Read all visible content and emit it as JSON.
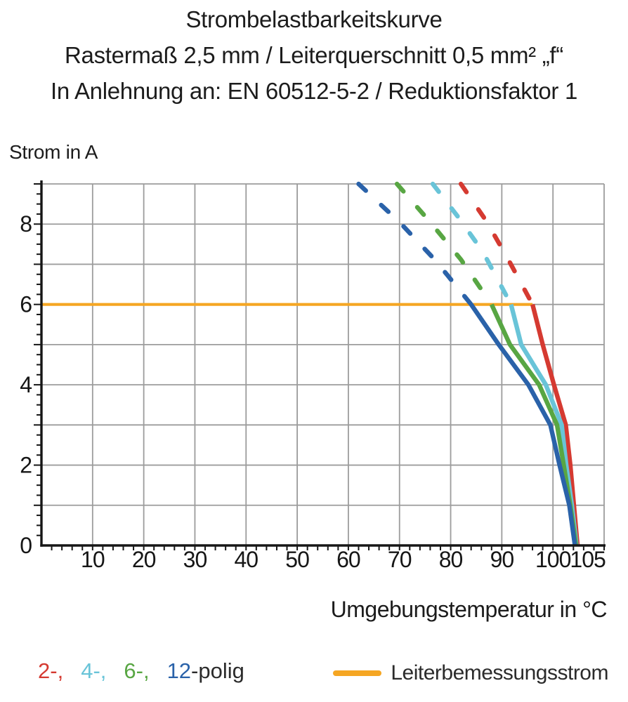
{
  "title": {
    "line1": "Strombelastbarkeitskurve",
    "line2": "Rastermaß 2,5 mm / Leiterquerschnitt 0,5 mm² „f“",
    "line3": "In Anlehnung an: EN 60512-5-2 / Reduktionsfaktor 1"
  },
  "chart_data": {
    "type": "line",
    "ylabel": "Strom in A",
    "xlabel": "Umgebungstemperatur in °C",
    "xlim": [
      0,
      110
    ],
    "ylim": [
      0,
      9
    ],
    "x_grid_step": 10,
    "y_grid_step": 1,
    "x_minor_tick_step": 2,
    "y_minor_tick_step": 0.25,
    "grid": true,
    "grid_color": "#9c9c9c",
    "axis_color": "#161616",
    "x_tick_labels": [
      {
        "value": 10,
        "label": "10"
      },
      {
        "value": 20,
        "label": "20"
      },
      {
        "value": 30,
        "label": "30"
      },
      {
        "value": 40,
        "label": "40"
      },
      {
        "value": 50,
        "label": "50"
      },
      {
        "value": 60,
        "label": "60"
      },
      {
        "value": 70,
        "label": "70"
      },
      {
        "value": 80,
        "label": "80"
      },
      {
        "value": 90,
        "label": "90"
      },
      {
        "value": 100,
        "label": "100"
      },
      {
        "value": 105,
        "label": "105",
        "dx": 13
      }
    ],
    "y_tick_labels": [
      {
        "value": 0,
        "label": "0"
      },
      {
        "value": 2,
        "label": "2"
      },
      {
        "value": 4,
        "label": "4"
      },
      {
        "value": 6,
        "label": "6"
      },
      {
        "value": 8,
        "label": "8"
      }
    ],
    "rated_current": {
      "label": "Leiterbemessungsstrom",
      "color": "#f5a623",
      "y": 6,
      "x_start": 0,
      "x_end": 96
    },
    "series": [
      {
        "name": "2-polig",
        "color": "#d53a31",
        "dashed": [
          [
            82,
            9
          ],
          [
            87,
            8.07
          ],
          [
            91.3,
            7.11
          ],
          [
            96,
            6
          ]
        ],
        "solid": [
          [
            96,
            6
          ],
          [
            98,
            5
          ],
          [
            100.2,
            4
          ],
          [
            102.5,
            3
          ],
          [
            103.4,
            2
          ],
          [
            104.1,
            1
          ],
          [
            104.8,
            0
          ]
        ]
      },
      {
        "name": "4-polig",
        "color": "#69c4d8",
        "dashed": [
          [
            76.5,
            9
          ],
          [
            81.5,
            8.17
          ],
          [
            86.3,
            7.31
          ],
          [
            91.8,
            6
          ]
        ],
        "solid": [
          [
            91.8,
            6
          ],
          [
            93.8,
            5
          ],
          [
            98.6,
            4
          ],
          [
            101.7,
            3
          ],
          [
            102.6,
            2
          ],
          [
            103.7,
            1
          ],
          [
            104.6,
            0
          ]
        ]
      },
      {
        "name": "6-polig",
        "color": "#58a643",
        "dashed": [
          [
            69.5,
            9
          ],
          [
            76,
            8.05
          ],
          [
            82,
            7.12
          ],
          [
            88,
            6
          ]
        ],
        "solid": [
          [
            88,
            6
          ],
          [
            91.6,
            5
          ],
          [
            97.3,
            4
          ],
          [
            100.8,
            3
          ],
          [
            102.1,
            2
          ],
          [
            103.4,
            1
          ],
          [
            104.5,
            0
          ]
        ]
      },
      {
        "name": "12-polig",
        "color": "#2a62a9",
        "dashed": [
          [
            62,
            9
          ],
          [
            70,
            8.05
          ],
          [
            77,
            7.1
          ],
          [
            84,
            6
          ]
        ],
        "solid": [
          [
            84,
            6
          ],
          [
            89.4,
            5
          ],
          [
            95.2,
            4
          ],
          [
            99.5,
            3
          ],
          [
            101.3,
            2
          ],
          [
            103.2,
            1
          ],
          [
            104.3,
            0
          ]
        ]
      }
    ]
  },
  "legend": {
    "pole_items": [
      {
        "label": "2",
        "suffix": "-,",
        "color": "#d53a31"
      },
      {
        "label": "4",
        "suffix": "-,",
        "color": "#69c4d8"
      },
      {
        "label": "6",
        "suffix": "-,",
        "color": "#58a643"
      },
      {
        "label": "12",
        "suffix": "-",
        "color": "#2a62a9",
        "suffix_color": "#2b2b2b"
      }
    ],
    "pole_word": "polig",
    "pole_word_color": "#2b2b2b",
    "line_label": "Leiterbemessungsstrom",
    "line_color": "#f5a623"
  }
}
